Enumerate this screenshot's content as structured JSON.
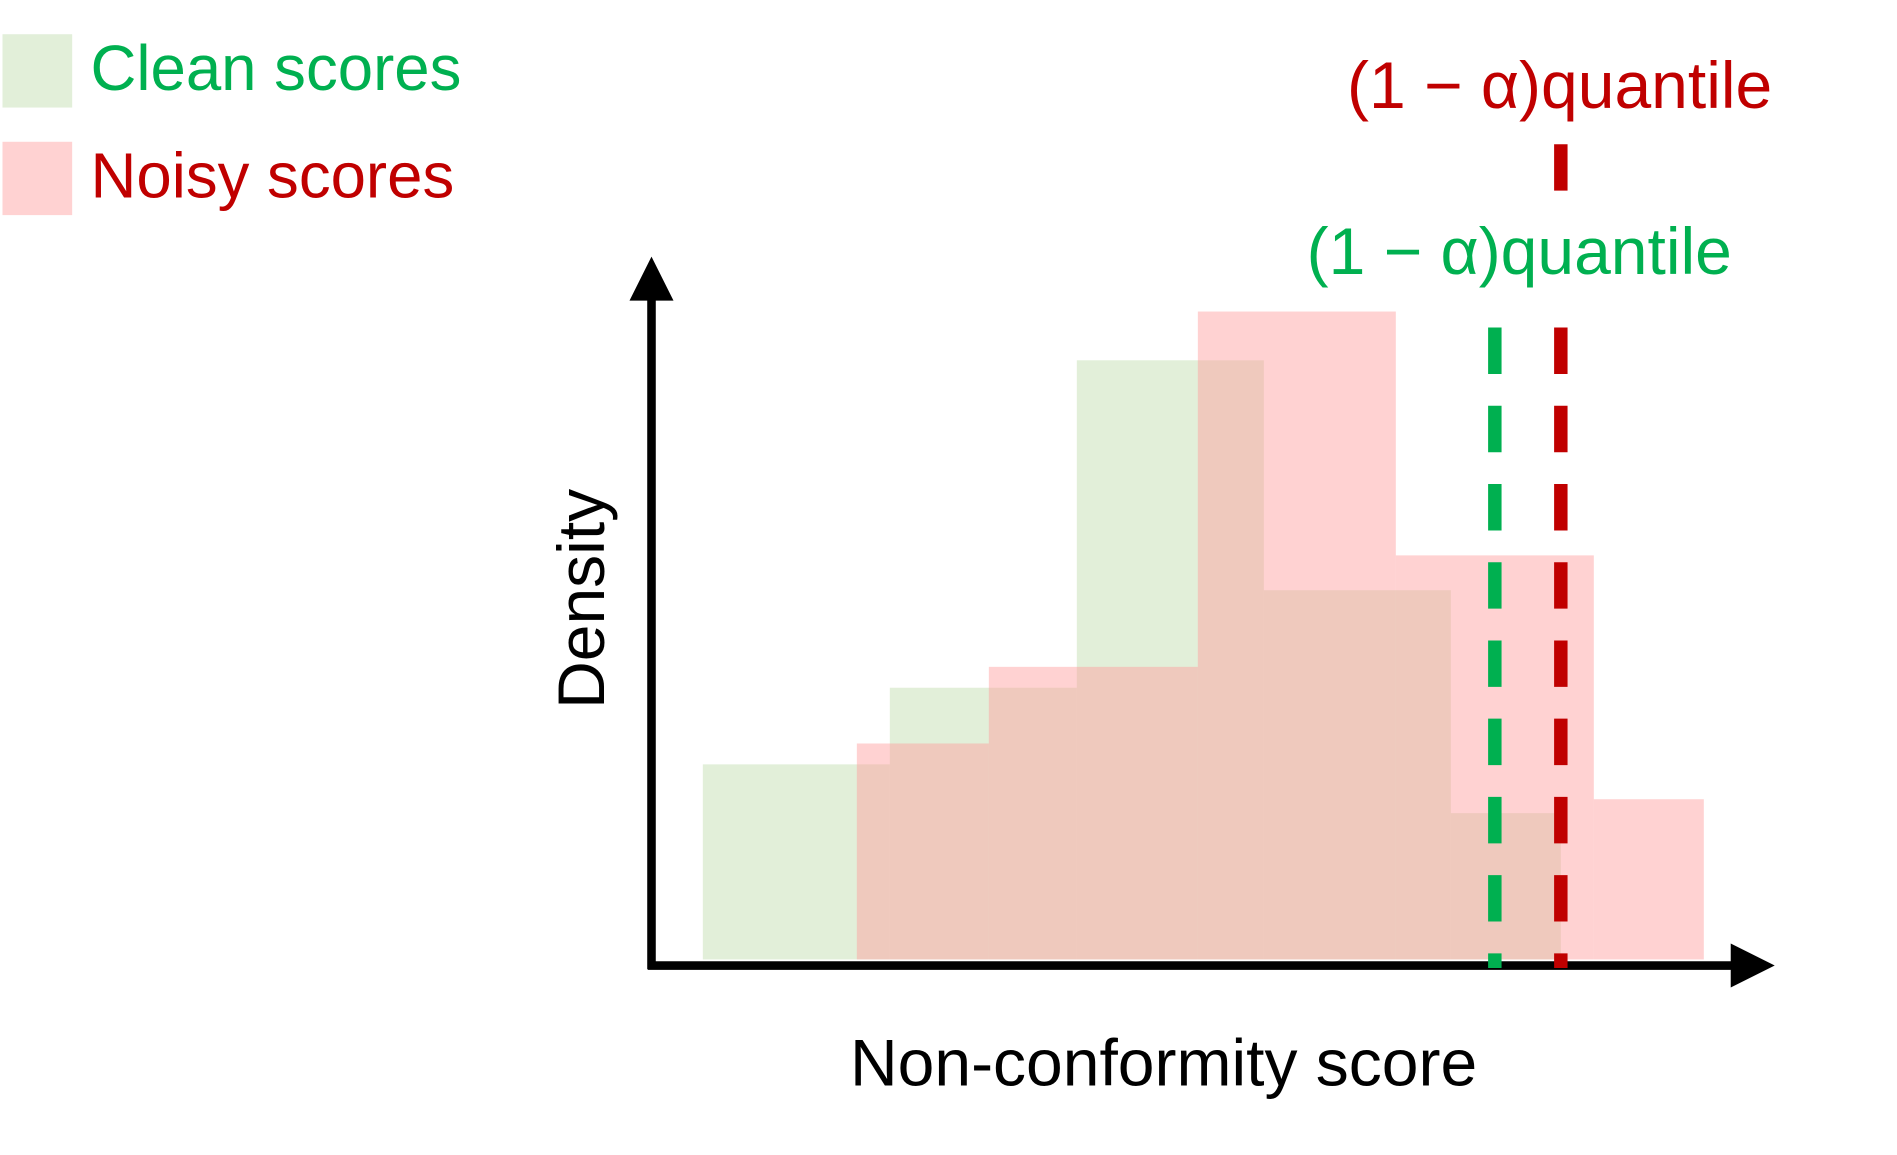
{
  "chart_data": {
    "type": "histogram",
    "x_label": "Non-conformity score",
    "y_label": "Density",
    "xlim": [
      0,
      10
    ],
    "ylim": [
      0,
      10
    ],
    "series": [
      {
        "name": "Clean scores",
        "color": "#c5e0b4",
        "text_color": "#00b050",
        "bins": [
          0.5,
          2.2,
          3.9,
          5.6,
          7.3,
          8.3
        ],
        "values": [
          2.8,
          3.9,
          8.6,
          5.3,
          2.1
        ]
      },
      {
        "name": "Noisy scores",
        "color": "#ff9b9b",
        "text_color": "#c00000",
        "bins": [
          1.9,
          3.1,
          5.0,
          6.8,
          8.6,
          9.6
        ],
        "values": [
          3.1,
          4.2,
          9.3,
          5.8,
          2.3
        ]
      }
    ],
    "quantiles": [
      {
        "label": "(1 − α)quantile",
        "x": 8.3,
        "color": "#c00000"
      },
      {
        "label": "(1 − α)quantile",
        "x": 7.7,
        "color": "#00b050"
      }
    ]
  }
}
